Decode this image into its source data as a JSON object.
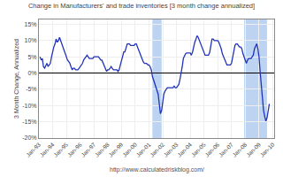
{
  "chart_data": {
    "type": "line",
    "title": "Change in Manufacturers' and trade inventories [3 month change annualized]",
    "ylabel": "3 Month Change, Annualized",
    "annotations": [
      "http://www.calculatedriskblog.com/"
    ],
    "color": "#2233bb",
    "grid": true,
    "recessions": [
      {
        "start": 2001.25,
        "end": 2001.92,
        "color": "#b0ccee"
      },
      {
        "start": 2007.92,
        "end": 2009.58,
        "color": "#b0ccee"
      }
    ],
    "xlim": [
      1993.0,
      2010.1
    ],
    "ylim": [
      -0.2,
      0.165
    ],
    "yticks": [
      {
        "value": -0.2,
        "label": "-20%"
      },
      {
        "value": -0.15,
        "label": "-15%"
      },
      {
        "value": -0.1,
        "label": "-10%"
      },
      {
        "value": -0.05,
        "label": "-5%"
      },
      {
        "value": 0.0,
        "label": "0%"
      },
      {
        "value": 0.05,
        "label": "5%"
      },
      {
        "value": 0.1,
        "label": "10%"
      },
      {
        "value": 0.15,
        "label": "15%"
      }
    ],
    "xticks": [
      {
        "value": 1993.0,
        "label": "Jan-93"
      },
      {
        "value": 1994.0,
        "label": "Jan-94"
      },
      {
        "value": 1995.0,
        "label": "Jan-95"
      },
      {
        "value": 1996.0,
        "label": "Jan-96"
      },
      {
        "value": 1997.0,
        "label": "Jan-97"
      },
      {
        "value": 1998.0,
        "label": "Jan-98"
      },
      {
        "value": 1999.0,
        "label": "Jan-99"
      },
      {
        "value": 2000.0,
        "label": "Jan-00"
      },
      {
        "value": 2001.0,
        "label": "Jan-01"
      },
      {
        "value": 2002.0,
        "label": "Jan-02"
      },
      {
        "value": 2003.0,
        "label": "Jan-03"
      },
      {
        "value": 2004.0,
        "label": "Jan-04"
      },
      {
        "value": 2005.0,
        "label": "Jan-05"
      },
      {
        "value": 2006.0,
        "label": "Jan-06"
      },
      {
        "value": 2007.0,
        "label": "Jan-07"
      },
      {
        "value": 2008.0,
        "label": "Jan-08"
      },
      {
        "value": 2009.0,
        "label": "Jan-09"
      },
      {
        "value": 2010.0,
        "label": "Jan-10"
      }
    ],
    "x": [
      1993.08,
      1993.17,
      1993.25,
      1993.33,
      1993.42,
      1993.5,
      1993.58,
      1993.67,
      1993.75,
      1993.83,
      1993.92,
      1994.0,
      1994.08,
      1994.17,
      1994.25,
      1994.33,
      1994.42,
      1994.5,
      1994.58,
      1994.67,
      1994.75,
      1994.83,
      1994.92,
      1995.0,
      1995.08,
      1995.17,
      1995.25,
      1995.33,
      1995.42,
      1995.5,
      1995.58,
      1995.67,
      1995.75,
      1995.83,
      1995.92,
      1996.0,
      1996.08,
      1996.17,
      1996.25,
      1996.33,
      1996.42,
      1996.5,
      1996.58,
      1996.67,
      1996.75,
      1996.83,
      1996.92,
      1997.0,
      1997.08,
      1997.17,
      1997.25,
      1997.33,
      1997.42,
      1997.5,
      1997.58,
      1997.67,
      1997.75,
      1997.83,
      1997.92,
      1998.0,
      1998.08,
      1998.17,
      1998.25,
      1998.33,
      1998.42,
      1998.5,
      1998.58,
      1998.67,
      1998.75,
      1998.83,
      1998.92,
      1999.0,
      1999.08,
      1999.17,
      1999.25,
      1999.33,
      1999.42,
      1999.5,
      1999.58,
      1999.67,
      1999.75,
      1999.83,
      1999.92,
      2000.0,
      2000.08,
      2000.17,
      2000.25,
      2000.33,
      2000.42,
      2000.5,
      2000.58,
      2000.67,
      2000.75,
      2000.83,
      2000.92,
      2001.0,
      2001.08,
      2001.17,
      2001.25,
      2001.33,
      2001.42,
      2001.5,
      2001.58,
      2001.67,
      2001.75,
      2001.83,
      2001.92,
      2002.0,
      2002.08,
      2002.17,
      2002.25,
      2002.33,
      2002.42,
      2002.5,
      2002.58,
      2002.67,
      2002.75,
      2002.83,
      2002.92,
      2003.0,
      2003.08,
      2003.17,
      2003.25,
      2003.33,
      2003.42,
      2003.5,
      2003.58,
      2003.67,
      2003.75,
      2003.83,
      2003.92,
      2004.0,
      2004.08,
      2004.17,
      2004.25,
      2004.33,
      2004.42,
      2004.5,
      2004.58,
      2004.67,
      2004.75,
      2004.83,
      2004.92,
      2005.0,
      2005.08,
      2005.17,
      2005.25,
      2005.33,
      2005.42,
      2005.5,
      2005.58,
      2005.67,
      2005.75,
      2005.83,
      2005.92,
      2006.0,
      2006.08,
      2006.17,
      2006.25,
      2006.33,
      2006.42,
      2006.5,
      2006.58,
      2006.67,
      2006.75,
      2006.83,
      2006.92,
      2007.0,
      2007.08,
      2007.17,
      2007.25,
      2007.33,
      2007.42,
      2007.5,
      2007.58,
      2007.67,
      2007.75,
      2007.83,
      2007.92,
      2008.0,
      2008.08,
      2008.17,
      2008.25,
      2008.33,
      2008.42,
      2008.5,
      2008.58,
      2008.67,
      2008.75,
      2008.83,
      2008.92,
      2009.0,
      2009.08,
      2009.17,
      2009.25,
      2009.33,
      2009.42,
      2009.5,
      2009.58,
      2009.67,
      2009.75
    ],
    "values": [
      0.05,
      0.04,
      0.045,
      0.02,
      0.015,
      0.025,
      0.03,
      0.02,
      0.025,
      0.03,
      0.05,
      0.07,
      0.08,
      0.09,
      0.105,
      0.095,
      0.1,
      0.11,
      0.1,
      0.09,
      0.075,
      0.065,
      0.055,
      0.05,
      0.04,
      0.035,
      0.03,
      0.02,
      0.01,
      0.015,
      0.015,
      0.01,
      0.01,
      0.01,
      0.015,
      0.02,
      0.025,
      0.03,
      0.04,
      0.045,
      0.05,
      0.055,
      0.05,
      0.045,
      0.045,
      0.045,
      0.045,
      0.05,
      0.05,
      0.05,
      0.05,
      0.05,
      0.045,
      0.04,
      0.04,
      0.03,
      0.02,
      0.01,
      0.005,
      0.01,
      0.01,
      0.015,
      0.02,
      0.015,
      0.01,
      0.01,
      0.01,
      0.01,
      0.005,
      0.01,
      0.025,
      0.04,
      0.055,
      0.065,
      0.065,
      0.075,
      0.09,
      0.09,
      0.09,
      0.085,
      0.085,
      0.085,
      0.085,
      0.09,
      0.09,
      0.08,
      0.07,
      0.06,
      0.05,
      0.04,
      0.035,
      0.03,
      0.03,
      0.03,
      0.025,
      0.025,
      0.02,
      0.01,
      -0.01,
      -0.02,
      -0.03,
      -0.04,
      -0.055,
      -0.065,
      -0.095,
      -0.125,
      -0.115,
      -0.085,
      -0.065,
      -0.055,
      -0.05,
      -0.045,
      -0.045,
      -0.045,
      -0.045,
      -0.045,
      -0.045,
      -0.04,
      -0.045,
      -0.045,
      -0.04,
      -0.035,
      -0.02,
      -0.005,
      0.02,
      0.045,
      0.055,
      0.06,
      0.062,
      0.063,
      0.062,
      0.062,
      0.055,
      0.065,
      0.085,
      0.095,
      0.105,
      0.115,
      0.11,
      0.1,
      0.092,
      0.085,
      0.075,
      0.065,
      0.055,
      0.055,
      0.055,
      0.055,
      0.065,
      0.085,
      0.105,
      0.105,
      0.1,
      0.1,
      0.1,
      0.1,
      0.095,
      0.085,
      0.075,
      0.06,
      0.05,
      0.04,
      0.03,
      0.025,
      0.025,
      0.025,
      0.025,
      0.03,
      0.05,
      0.065,
      0.085,
      0.09,
      0.09,
      0.085,
      0.08,
      0.08,
      0.075,
      0.06,
      0.05,
      0.04,
      0.03,
      0.04,
      0.045,
      0.045,
      0.045,
      0.05,
      0.055,
      0.075,
      0.085,
      0.09,
      0.075,
      0.05,
      0.005,
      -0.045,
      -0.09,
      -0.115,
      -0.135,
      -0.148,
      -0.138,
      -0.115,
      -0.095
    ]
  }
}
